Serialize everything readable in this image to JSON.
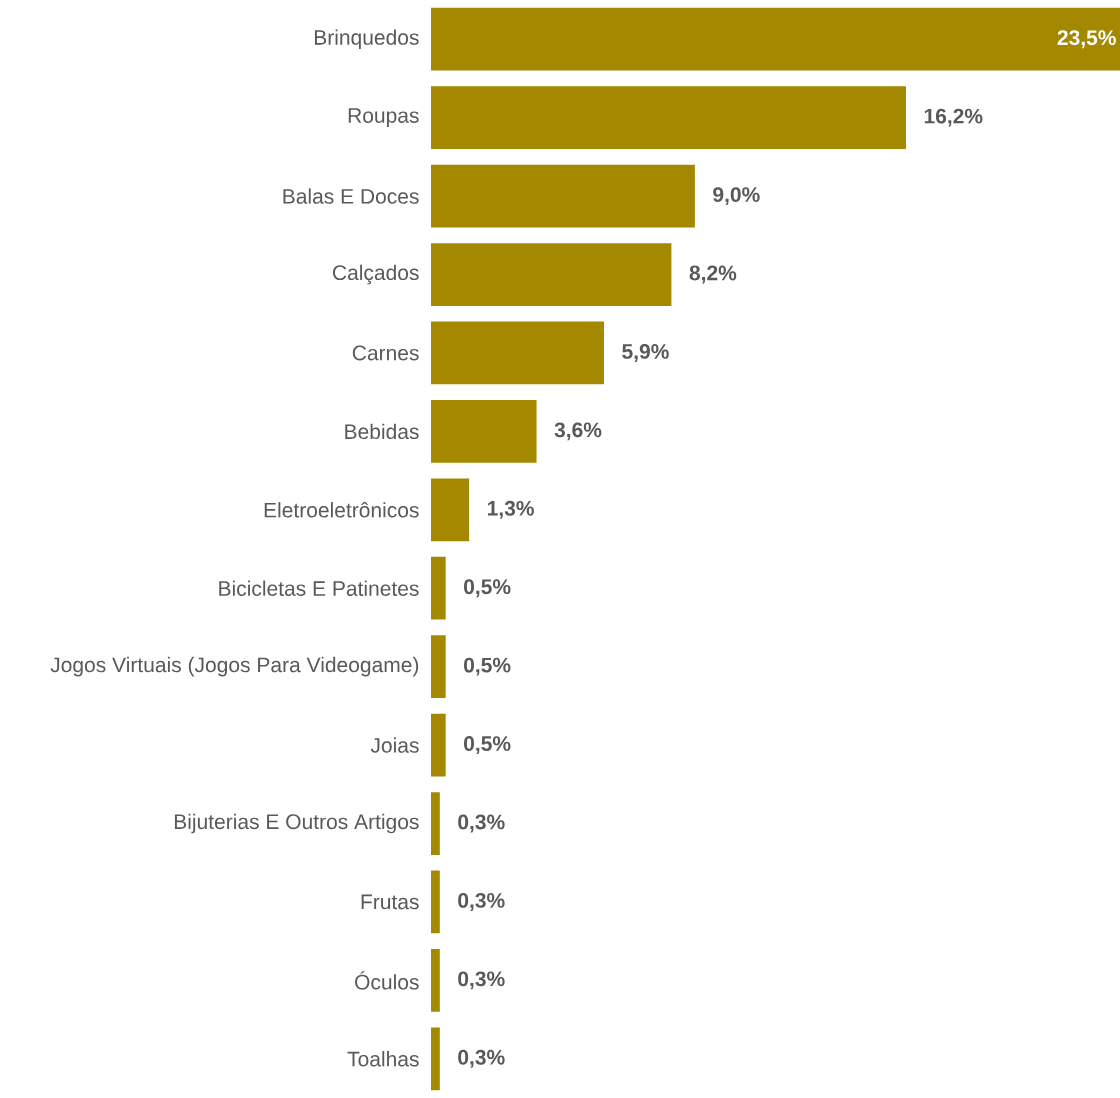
{
  "chart_data": {
    "type": "bar",
    "orientation": "horizontal",
    "categories": [
      "Brinquedos",
      "Roupas",
      "Balas E Doces",
      "Calçados",
      "Carnes",
      "Bebidas",
      "Eletroeletrônicos",
      "Bicicletas E Patinetes",
      "Jogos Virtuais (Jogos Para Videogame)",
      "Joias",
      "Bijuterias E Outros Artigos",
      "Frutas",
      "Óculos",
      "Toalhas"
    ],
    "values": [
      23.5,
      16.2,
      9.0,
      8.2,
      5.9,
      3.6,
      1.3,
      0.5,
      0.5,
      0.5,
      0.3,
      0.3,
      0.3,
      0.3
    ],
    "value_labels": [
      "23,5%",
      "16,2%",
      "9,0%",
      "8,2%",
      "5,9%",
      "3,6%",
      "1,3%",
      "0,5%",
      "0,5%",
      "0,5%",
      "0,3%",
      "0,3%",
      "0,3%",
      "0,3%"
    ],
    "color": "#a38800"
  }
}
